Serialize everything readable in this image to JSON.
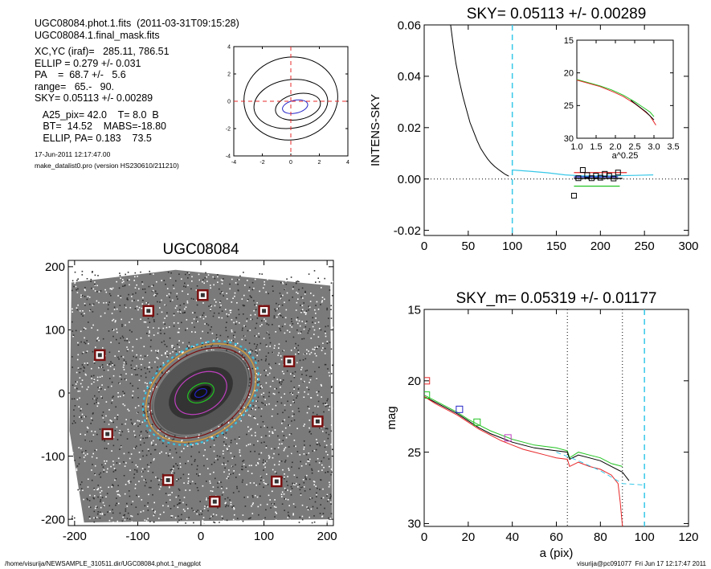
{
  "info": {
    "lines": [
      "UGC08084.phot.1.fits  (2011-03-31T09:15:28)",
      "UGC08084.1.final_mask.fits",
      "",
      "XC,YC (iraf)=   285.11, 786.51",
      "ELLIP = 0.279 +/- 0.031",
      "PA    =  68.7 +/-   5.6",
      "range=   65.-   90.",
      "SKY= 0.05113 +/- 0.00289",
      "",
      "   A25_pix= 42.0    T= 8.0  B",
      "   BT=  14.52    MABS=-18.80",
      "   ELLIP, PA= 0.183    73.5"
    ],
    "date": "17-Jun-2011 12:17:47.00",
    "program": "make_datalist0.pro (version HS230610/211210)"
  },
  "footer": {
    "left": "/home/visurija/NEWSAMPLE_310511.dir/UGC08084.phot.1_magplot",
    "right": "visurija@pc091077  Fri Jun 17 12:17:47 2011"
  },
  "colors": {
    "black": "#000000",
    "red": "#e8282a",
    "green": "#22c322",
    "cyan": "#37c8e8",
    "blue": "#2424c8",
    "magenta": "#c040c0",
    "orange": "#e0a030",
    "darkred": "#7a1010",
    "gray": "#808080"
  },
  "chart_data": [
    {
      "id": "contour",
      "type": "contour",
      "xlim": [
        -4,
        4
      ],
      "ylim": [
        -4,
        4
      ],
      "xticks": [
        -4,
        -2,
        0,
        2,
        4
      ],
      "yticks": [
        -4,
        -2,
        0,
        2,
        4
      ],
      "tick_labels_x": [
        "-4",
        "-2",
        "0",
        "2",
        "4"
      ],
      "tick_labels_y": [
        "-4",
        "-2",
        "0",
        "2",
        "4"
      ],
      "levels": [
        {
          "cx": 0.3,
          "cy": -0.4,
          "rx": 0.9,
          "ry": 0.45,
          "rot": -12,
          "color": "blue"
        },
        {
          "cx": 0.5,
          "cy": -0.4,
          "rx": 1.6,
          "ry": 0.9,
          "rot": -12,
          "color": "black"
        },
        {
          "cx": 0.0,
          "cy": -0.2,
          "rx": 2.6,
          "ry": 1.7,
          "rot": -8,
          "color": "black"
        },
        {
          "cx": 0.0,
          "cy": 0.2,
          "rx": 3.3,
          "ry": 2.9,
          "rot": -10,
          "color": "black"
        }
      ],
      "crosshair": [
        0,
        0
      ]
    },
    {
      "id": "sky",
      "type": "line",
      "title": "SKY= 0.05113 +/- 0.00289",
      "xlabel": "",
      "ylabel": "INTENS-SKY",
      "xlim": [
        0,
        300
      ],
      "ylim": [
        -0.022,
        0.06
      ],
      "xticks": [
        0,
        50,
        100,
        150,
        200,
        250,
        300
      ],
      "tick_labels_x": [
        "0",
        "50",
        "100",
        "150",
        "200",
        "250",
        "300"
      ],
      "yticks": [
        -0.02,
        0.0,
        0.02,
        0.04,
        0.06
      ],
      "tick_labels_y": [
        "-0.02",
        "0.00",
        "0.02",
        "0.04",
        "0.06"
      ],
      "vlines": [
        {
          "x": 100,
          "color": "cyan",
          "dash": true
        }
      ],
      "zero_line": true,
      "profile": {
        "x": [
          30,
          33,
          36,
          40,
          44,
          48,
          52,
          56,
          60,
          64,
          68,
          72,
          76,
          80,
          84,
          88,
          92,
          96
        ],
        "y": [
          0.06,
          0.052,
          0.045,
          0.038,
          0.032,
          0.027,
          0.022,
          0.0185,
          0.015,
          0.012,
          0.0098,
          0.0078,
          0.0062,
          0.0049,
          0.0038,
          0.0028,
          0.0018,
          0.0011
        ]
      },
      "tail": {
        "x": [
          100,
          120,
          140,
          160,
          180,
          200,
          220,
          240,
          260
        ],
        "y": [
          0.0035,
          0.003,
          0.0024,
          0.0016,
          0.0012,
          0.0012,
          0.0013,
          0.0014,
          0.0016
        ]
      },
      "squares": {
        "x": [
          170,
          175,
          180,
          185,
          190,
          195,
          200,
          205,
          210,
          215,
          220
        ],
        "y": [
          -0.0065,
          0.0003,
          0.0035,
          0.0015,
          0.0003,
          0.0013,
          0.0005,
          0.002,
          0.0012,
          0.0002,
          0.0025
        ]
      },
      "segments": [
        {
          "x0": 170,
          "x1": 230,
          "y": 0.0025,
          "color": "red"
        },
        {
          "x0": 170,
          "x1": 225,
          "y": 0.0002,
          "color": "black"
        },
        {
          "x0": 170,
          "x1": 222,
          "y": -0.0028,
          "color": "green"
        },
        {
          "x0": 170,
          "x1": 220,
          "y": 0.0008,
          "color": "blue"
        }
      ]
    },
    {
      "id": "sky_inset",
      "type": "line",
      "xlabel": "a^0.25",
      "xlim": [
        1.0,
        3.5
      ],
      "ylim": [
        15,
        30
      ],
      "reversed_y": true,
      "xticks": [
        1.0,
        1.5,
        2.0,
        2.5,
        3.0,
        3.5
      ],
      "tick_labels_x": [
        "1.0",
        "1.5",
        "2.0",
        "2.5",
        "3.0",
        "3.5"
      ],
      "yticks": [
        15,
        20,
        25,
        30
      ],
      "tick_labels_y": [
        "15",
        "20",
        "25",
        "30"
      ],
      "series": [
        {
          "color": "green",
          "x": [
            1.0,
            1.3,
            1.6,
            1.9,
            2.2,
            2.5,
            2.7,
            2.9,
            3.0
          ],
          "y": [
            21.0,
            21.5,
            22.0,
            22.6,
            23.4,
            24.4,
            25.2,
            26.0,
            26.7
          ]
        },
        {
          "color": "red",
          "x": [
            1.0,
            1.3,
            1.6,
            1.9,
            2.2,
            2.5,
            2.7,
            2.9,
            3.05
          ],
          "y": [
            21.1,
            21.6,
            22.1,
            22.8,
            23.6,
            24.7,
            25.6,
            26.6,
            28.0
          ]
        },
        {
          "color": "black",
          "x": [
            2.4,
            2.6,
            2.8,
            3.0
          ],
          "y": [
            24.2,
            25.1,
            26.0,
            27.2
          ]
        }
      ]
    },
    {
      "id": "image",
      "type": "scatter",
      "title": "UGC08084",
      "xlim": [
        -210,
        210
      ],
      "ylim": [
        -210,
        210
      ],
      "xticks": [
        -200,
        -100,
        0,
        100,
        200
      ],
      "tick_labels_x": [
        "-200",
        "-100",
        "0",
        "100",
        "200"
      ],
      "yticks": [
        -200,
        -100,
        0,
        100,
        200
      ],
      "tick_labels_y": [
        "-200",
        "-100",
        "0",
        "100",
        "200"
      ],
      "stars": {
        "x": [
          3,
          -83,
          100,
          -160,
          140,
          185,
          -148,
          -52,
          120,
          22
        ],
        "y": [
          155,
          130,
          130,
          60,
          50,
          -45,
          -65,
          -138,
          -140,
          -172
        ]
      },
      "ellipses": [
        {
          "a": 95,
          "b": 68,
          "pa": 35,
          "color": "orange"
        },
        {
          "a": 88,
          "b": 62,
          "pa": 35,
          "color": "darkred"
        },
        {
          "a": 82,
          "b": 58,
          "pa": 35,
          "color": "gray"
        },
        {
          "a": 44,
          "b": 30,
          "pa": 30,
          "color": "magenta"
        },
        {
          "a": 22,
          "b": 14,
          "pa": 25,
          "color": "green"
        },
        {
          "a": 10,
          "b": 6,
          "pa": 25,
          "color": "blue"
        }
      ],
      "ring": {
        "a": 100,
        "b": 72,
        "pa": 35,
        "color": "cyan"
      }
    },
    {
      "id": "mag",
      "type": "line",
      "title": "SKY_m=  0.05319 +/- 0.01177",
      "xlabel": "a (pix)",
      "ylabel": "mag",
      "xlim": [
        0,
        120
      ],
      "ylim": [
        15,
        30.2
      ],
      "reversed_y": true,
      "xticks": [
        0,
        20,
        40,
        60,
        80,
        100,
        120
      ],
      "tick_labels_x": [
        "0",
        "20",
        "40",
        "60",
        "80",
        "100",
        "120"
      ],
      "yticks": [
        15,
        20,
        25,
        30
      ],
      "tick_labels_y": [
        "15",
        "20",
        "25",
        "30"
      ],
      "vlines": [
        {
          "x": 65,
          "color": "black",
          "dash": true
        },
        {
          "x": 90,
          "color": "black",
          "dash": true
        },
        {
          "x": 100,
          "color": "cyan",
          "dash": true
        }
      ],
      "series": [
        {
          "color": "green",
          "x": [
            0,
            5,
            10,
            15,
            20,
            25,
            30,
            35,
            40,
            45,
            50,
            55,
            60,
            65,
            66,
            70,
            75,
            80,
            85,
            90
          ],
          "y": [
            21.0,
            21.4,
            21.8,
            22.2,
            22.7,
            23.1,
            23.5,
            23.8,
            24.1,
            24.3,
            24.5,
            24.6,
            24.7,
            24.9,
            25.4,
            25.0,
            25.2,
            25.4,
            25.8,
            26.0
          ]
        },
        {
          "color": "black",
          "x": [
            0,
            5,
            10,
            15,
            20,
            25,
            30,
            35,
            40,
            45,
            50,
            55,
            60,
            65,
            66,
            70,
            75,
            80,
            85,
            90,
            93
          ],
          "y": [
            21.1,
            21.5,
            21.9,
            22.3,
            22.8,
            23.3,
            23.7,
            24.0,
            24.3,
            24.5,
            24.7,
            24.8,
            24.9,
            25.0,
            25.5,
            25.2,
            25.4,
            25.6,
            26.0,
            26.4,
            27.0
          ]
        },
        {
          "color": "red",
          "x": [
            0,
            5,
            10,
            15,
            20,
            25,
            30,
            35,
            40,
            45,
            50,
            55,
            60,
            65,
            66,
            70,
            75,
            80,
            85,
            88,
            89,
            90
          ],
          "y": [
            21.1,
            21.6,
            22.0,
            22.4,
            22.9,
            23.4,
            23.8,
            24.2,
            24.5,
            24.8,
            25.0,
            25.2,
            25.4,
            25.5,
            26.0,
            25.7,
            26.0,
            26.2,
            26.6,
            27.2,
            28.5,
            30.2
          ]
        },
        {
          "color": "cyan",
          "x": [
            60,
            70,
            80,
            90,
            100
          ],
          "y": [
            25.0,
            25.6,
            26.3,
            27.2,
            27.3
          ]
        }
      ],
      "markers": [
        {
          "x": 1,
          "y": 20.0,
          "color": "red"
        },
        {
          "x": 1,
          "y": 21.0,
          "color": "green"
        },
        {
          "x": 16,
          "y": 22.0,
          "color": "blue"
        },
        {
          "x": 24,
          "y": 22.9,
          "color": "green"
        },
        {
          "x": 38,
          "y": 24.0,
          "color": "magenta"
        }
      ]
    }
  ]
}
